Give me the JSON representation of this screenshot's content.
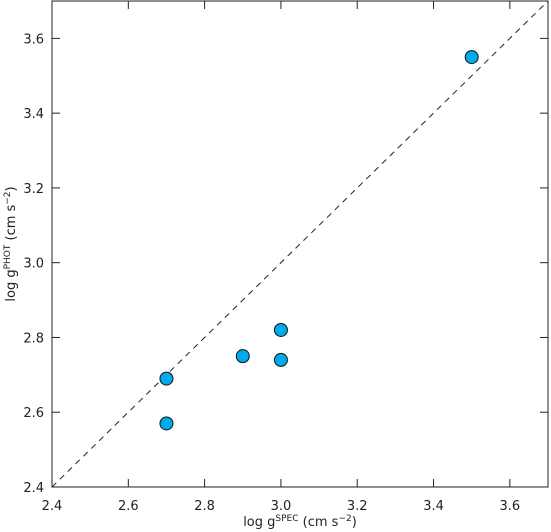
{
  "chart_data": {
    "type": "scatter",
    "x_label": [
      "log g",
      "SPEC",
      " (cm s",
      "−2",
      ")"
    ],
    "y_label": [
      "log g",
      "PHOT",
      " (cm s",
      "−2",
      ")"
    ],
    "series": [
      {
        "color": "#00aaee",
        "x": [
          2.7,
          2.7,
          2.9,
          3.0,
          3.0,
          3.5
        ],
        "values": [
          2.69,
          2.57,
          2.75,
          2.82,
          2.74,
          3.55
        ]
      }
    ],
    "xlim": [
      2.4,
      3.7
    ],
    "ylim": [
      2.4,
      3.7
    ],
    "xticks": [
      2.4,
      2.6,
      2.8,
      {
        "value": 3,
        "label": "3.0"
      },
      3.2,
      3.4,
      3.6
    ],
    "yticks": [
      2.4,
      2.6,
      2.8,
      {
        "value": 3,
        "label": "3.0"
      },
      3.2,
      3.4,
      3.6
    ],
    "identity_line": true
  }
}
